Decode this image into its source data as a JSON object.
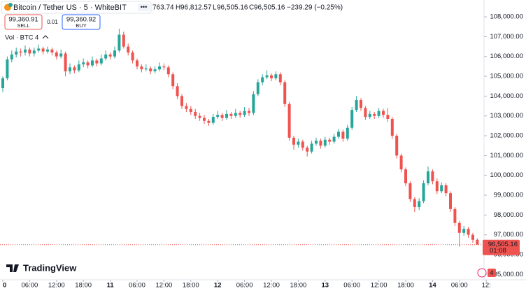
{
  "chart_data": {
    "type": "candlestick",
    "header": {
      "symbol": "Bitcoin / Tether US · 5 · WhiteBIT",
      "open_tail": "763.74",
      "high_key": "H",
      "high": "96,812.57",
      "low_key": "L",
      "low": "96,505.16",
      "close_key": "C",
      "close": "96,505.16",
      "change": "−239.29 (−0.25%)"
    },
    "trade": {
      "sell_price": "99,360.91",
      "sell": "SELL",
      "spread": "0.01",
      "buy_price": "99,360.92",
      "buy": "BUY"
    },
    "volume_legend": {
      "label": "Vol · BTC",
      "value": "4"
    },
    "brand": "TradingView",
    "badge": "4",
    "up_color": "#26a69a",
    "down_color": "#ef5350",
    "last_price": {
      "value": 96505.16,
      "label": "96,505.16"
    },
    "countdown": "01:08",
    "ylim": [
      94800,
      108850
    ],
    "yticks": [
      {
        "value": 108000,
        "label": "108,000.00"
      },
      {
        "value": 107000,
        "label": "107,000.00"
      },
      {
        "value": 106000,
        "label": "106,000.00"
      },
      {
        "value": 105000,
        "label": "105,000.00"
      },
      {
        "value": 104000,
        "label": "104,000.00"
      },
      {
        "value": 103000,
        "label": "103,000.00"
      },
      {
        "value": 102000,
        "label": "102,000.00"
      },
      {
        "value": 101000,
        "label": "101,000.00"
      },
      {
        "value": 100000,
        "label": "100,000.00"
      },
      {
        "value": 99000,
        "label": "99,000.00"
      },
      {
        "value": 98000,
        "label": "98,000.00"
      },
      {
        "value": 97000,
        "label": "97,000.00"
      },
      {
        "value": 96000,
        "label": "96,000.00"
      },
      {
        "value": 95000,
        "label": "95,000.00"
      }
    ],
    "xticks": [
      {
        "value": 0,
        "label": "0"
      },
      {
        "value": 6,
        "label": "06:00"
      },
      {
        "value": 12,
        "label": "12:00"
      },
      {
        "value": 18,
        "label": "18:00"
      },
      {
        "value": 24,
        "label": "11"
      },
      {
        "value": 30,
        "label": "06:00"
      },
      {
        "value": 36,
        "label": "12:00"
      },
      {
        "value": 42,
        "label": "18:00"
      },
      {
        "value": 48,
        "label": "12"
      },
      {
        "value": 54,
        "label": "06:00"
      },
      {
        "value": 60,
        "label": "12:00"
      },
      {
        "value": 66,
        "label": "18:00"
      },
      {
        "value": 72,
        "label": "13"
      },
      {
        "value": 78,
        "label": "06:00"
      },
      {
        "value": 84,
        "label": "12:00"
      },
      {
        "value": 90,
        "label": "18:00"
      },
      {
        "value": 96,
        "label": "14"
      },
      {
        "value": 102,
        "label": "06:00"
      },
      {
        "value": 108,
        "label": "12:"
      }
    ],
    "candles": [
      [
        104400,
        105000,
        104200,
        104900
      ],
      [
        104900,
        106000,
        104800,
        105850
      ],
      [
        105850,
        106300,
        105700,
        106100
      ],
      [
        106100,
        106450,
        105950,
        106250
      ],
      [
        106250,
        106400,
        106000,
        106200
      ],
      [
        106200,
        106550,
        106050,
        106350
      ],
      [
        106350,
        106450,
        106000,
        106150
      ],
      [
        106150,
        106450,
        106000,
        106300
      ],
      [
        106300,
        106600,
        106200,
        106400
      ],
      [
        106400,
        106500,
        106100,
        106250
      ],
      [
        106250,
        106500,
        106150,
        106350
      ],
      [
        106350,
        106450,
        106050,
        106200
      ],
      [
        106200,
        106300,
        105850,
        106000
      ],
      [
        106000,
        106350,
        105900,
        106150
      ],
      [
        106150,
        106250,
        105000,
        105250
      ],
      [
        105250,
        105650,
        105100,
        105450
      ],
      [
        105450,
        105550,
        105150,
        105300
      ],
      [
        105300,
        105800,
        105200,
        105600
      ],
      [
        105600,
        105900,
        105450,
        105700
      ],
      [
        105700,
        105800,
        105400,
        105550
      ],
      [
        105550,
        106000,
        105450,
        105800
      ],
      [
        105800,
        105900,
        105500,
        105650
      ],
      [
        105650,
        106100,
        105550,
        105900
      ],
      [
        105900,
        106300,
        105800,
        106100
      ],
      [
        106100,
        106200,
        105850,
        106000
      ],
      [
        106000,
        106500,
        105900,
        106300
      ],
      [
        106300,
        107400,
        106200,
        107100
      ],
      [
        107100,
        107250,
        106400,
        106500
      ],
      [
        106500,
        106650,
        106050,
        106200
      ],
      [
        106200,
        106300,
        105650,
        105800
      ],
      [
        105800,
        105900,
        105350,
        105500
      ],
      [
        105500,
        105600,
        105200,
        105350
      ],
      [
        105350,
        105600,
        105250,
        105400
      ],
      [
        105400,
        105500,
        105100,
        105250
      ],
      [
        105250,
        105500,
        105150,
        105350
      ],
      [
        105350,
        105700,
        105250,
        105500
      ],
      [
        105500,
        105650,
        105300,
        105450
      ],
      [
        105450,
        105550,
        104950,
        105100
      ],
      [
        105100,
        105200,
        104350,
        104500
      ],
      [
        104500,
        104650,
        103850,
        104000
      ],
      [
        104000,
        104100,
        103350,
        103500
      ],
      [
        103500,
        103650,
        103200,
        103350
      ],
      [
        103350,
        103500,
        103050,
        103200
      ],
      [
        103200,
        103350,
        102850,
        103000
      ],
      [
        103000,
        103150,
        102750,
        102900
      ],
      [
        102900,
        103050,
        102600,
        102750
      ],
      [
        102750,
        102850,
        102500,
        102650
      ],
      [
        102650,
        103100,
        102550,
        102950
      ],
      [
        102950,
        103250,
        102850,
        103050
      ],
      [
        103050,
        103150,
        102750,
        102900
      ],
      [
        102900,
        103300,
        102800,
        103100
      ],
      [
        103100,
        103200,
        102850,
        103000
      ],
      [
        103000,
        103350,
        102900,
        103150
      ],
      [
        103150,
        103250,
        102900,
        103050
      ],
      [
        103050,
        103450,
        102950,
        103250
      ],
      [
        103250,
        103400,
        103000,
        103150
      ],
      [
        103150,
        104250,
        103050,
        104100
      ],
      [
        104100,
        104850,
        104000,
        104700
      ],
      [
        104700,
        105100,
        104550,
        104950
      ],
      [
        104950,
        105300,
        104850,
        105050
      ],
      [
        105050,
        105150,
        104750,
        104900
      ],
      [
        104900,
        105250,
        104800,
        105100
      ],
      [
        105100,
        105200,
        104550,
        104700
      ],
      [
        104700,
        104800,
        103450,
        103600
      ],
      [
        103600,
        103700,
        101750,
        101900
      ],
      [
        101900,
        102000,
        101300,
        101550
      ],
      [
        101550,
        101850,
        101400,
        101700
      ],
      [
        101700,
        101800,
        101250,
        101400
      ],
      [
        101400,
        101500,
        100950,
        101200
      ],
      [
        101200,
        101750,
        101100,
        101600
      ],
      [
        101600,
        101900,
        101500,
        101750
      ],
      [
        101750,
        101850,
        101350,
        101500
      ],
      [
        101500,
        101950,
        101400,
        101800
      ],
      [
        101800,
        101900,
        101550,
        101700
      ],
      [
        101700,
        102100,
        101600,
        101950
      ],
      [
        101950,
        102350,
        101850,
        102200
      ],
      [
        102200,
        102300,
        101700,
        101850
      ],
      [
        101850,
        102550,
        101750,
        102400
      ],
      [
        102400,
        103450,
        102300,
        103300
      ],
      [
        103300,
        104000,
        103200,
        103800
      ],
      [
        103800,
        103900,
        103250,
        103400
      ],
      [
        103400,
        103500,
        102800,
        102950
      ],
      [
        102950,
        103250,
        102850,
        103100
      ],
      [
        103100,
        103200,
        102850,
        103000
      ],
      [
        103000,
        103400,
        102900,
        103250
      ],
      [
        103250,
        103350,
        102900,
        103050
      ],
      [
        103050,
        103400,
        102700,
        102850
      ],
      [
        102850,
        102950,
        101850,
        102000
      ],
      [
        102000,
        102100,
        100850,
        101000
      ],
      [
        101000,
        101100,
        100150,
        100300
      ],
      [
        100300,
        100400,
        99450,
        99600
      ],
      [
        99600,
        99700,
        98650,
        98800
      ],
      [
        98800,
        98900,
        98150,
        98400
      ],
      [
        98400,
        98850,
        98250,
        98700
      ],
      [
        98700,
        99750,
        98600,
        99600
      ],
      [
        99600,
        100450,
        99500,
        100200
      ],
      [
        100200,
        100300,
        99550,
        99700
      ],
      [
        99700,
        99850,
        99050,
        99200
      ],
      [
        99200,
        99650,
        99100,
        99500
      ],
      [
        99500,
        99600,
        98950,
        99100
      ],
      [
        99100,
        99200,
        98150,
        98300
      ],
      [
        98300,
        98400,
        97450,
        97600
      ],
      [
        97600,
        97700,
        96400,
        97100
      ],
      [
        97100,
        97450,
        96950,
        97300
      ],
      [
        97300,
        97400,
        96850,
        97000
      ],
      [
        97000,
        97100,
        96600,
        96750
      ],
      [
        96750,
        96812.57,
        96505.16,
        96505.16
      ]
    ]
  }
}
